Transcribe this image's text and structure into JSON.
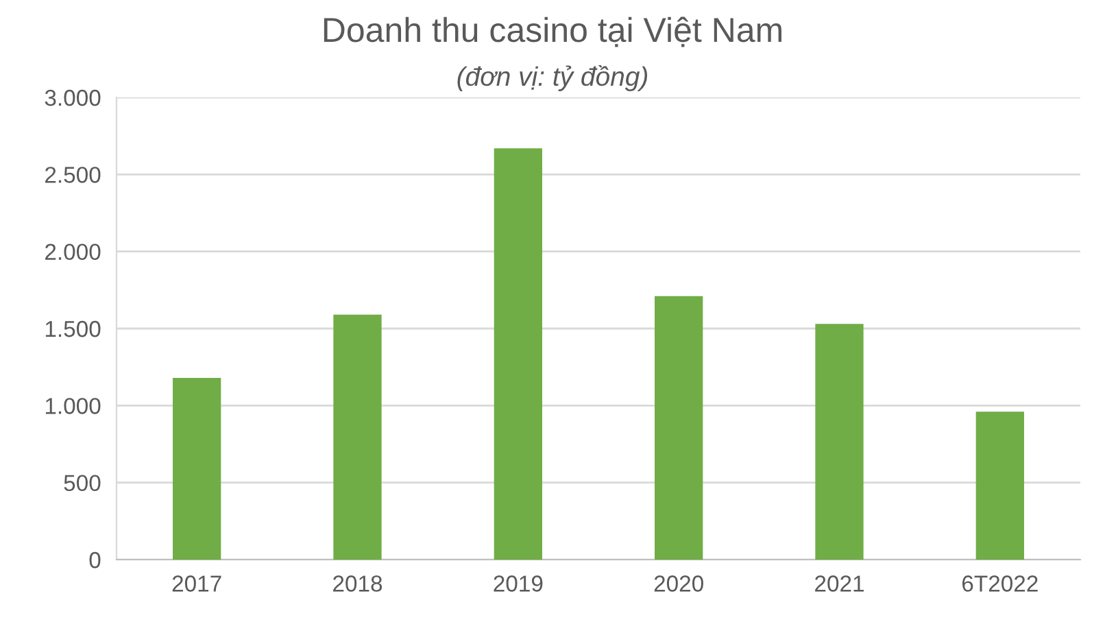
{
  "chart_data": {
    "type": "bar",
    "title": "Doanh thu casino tại Việt Nam",
    "subtitle": "(đơn vị: tỷ đồng)",
    "categories": [
      "2017",
      "2018",
      "2019",
      "2020",
      "2021",
      "6T2022"
    ],
    "values": [
      1180,
      1590,
      2670,
      1710,
      1530,
      960
    ],
    "color": "#70ad47",
    "ylim": [
      0,
      3000
    ],
    "yticks": [
      0,
      500,
      {
        "value": 1000,
        "label": "1.000"
      },
      {
        "value": 1500,
        "label": "1.500"
      },
      {
        "value": 2000,
        "label": "2.000"
      },
      {
        "value": 2500,
        "label": "2.500"
      },
      {
        "value": 3000,
        "label": "3.000"
      }
    ],
    "grid": "y"
  }
}
